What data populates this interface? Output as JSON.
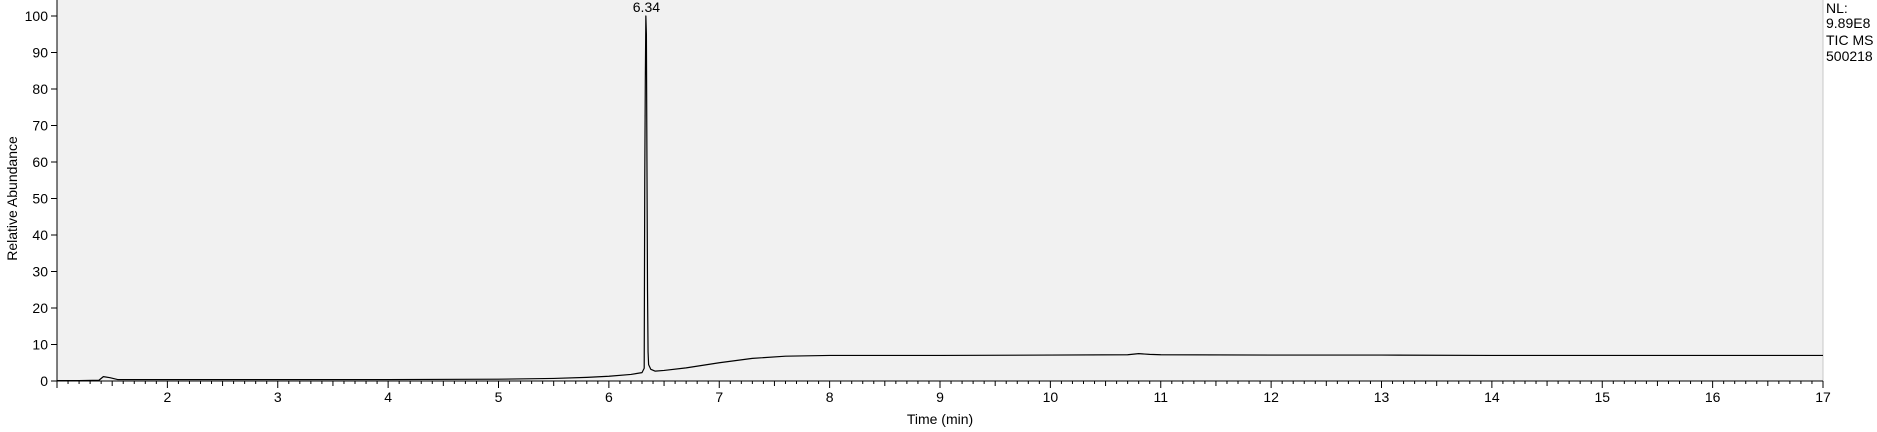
{
  "info": {
    "nl_label": "NL:",
    "nl_value": "9.89E8",
    "trace": "TIC  MS",
    "sample": "500218"
  },
  "colors": {
    "plot_background": "#f1f1f1",
    "trace": "#000000",
    "axis": "#000000"
  },
  "chart_data": {
    "type": "line",
    "title": "",
    "xlabel": "Time (min)",
    "ylabel": "Relative Abundance",
    "xlim": [
      1.0,
      17.0
    ],
    "ylim": [
      0,
      100
    ],
    "x_ticks": [
      2,
      3,
      4,
      5,
      6,
      7,
      8,
      9,
      10,
      11,
      12,
      13,
      14,
      15,
      16,
      17
    ],
    "y_ticks": [
      0,
      10,
      20,
      30,
      40,
      50,
      60,
      70,
      80,
      90,
      100
    ],
    "grid": false,
    "peak_labels": [
      {
        "x": 6.34,
        "y": 100,
        "text": "6.34"
      }
    ],
    "series": [
      {
        "x": [
          1.0,
          1.2,
          1.38,
          1.42,
          1.48,
          1.55,
          2.0,
          3.0,
          4.0,
          5.0,
          5.5,
          5.8,
          6.0,
          6.2,
          6.3,
          6.32,
          6.325,
          6.33,
          6.335,
          6.34,
          6.345,
          6.35,
          6.355,
          6.36,
          6.38,
          6.42,
          6.5,
          6.7,
          7.0,
          7.3,
          7.6,
          8.0,
          9.0,
          10.0,
          10.7,
          10.8,
          10.9,
          11.0,
          12.0,
          13.0,
          14.0,
          15.0,
          16.0,
          17.0
        ],
        "y": [
          0.1,
          0.1,
          0.2,
          1.2,
          0.9,
          0.4,
          0.4,
          0.4,
          0.4,
          0.5,
          0.7,
          1.0,
          1.3,
          1.8,
          2.3,
          3.5,
          55,
          82,
          100,
          95,
          60,
          25,
          8,
          4.5,
          3.2,
          2.7,
          2.9,
          3.6,
          5.0,
          6.2,
          6.8,
          7.0,
          7.0,
          7.1,
          7.2,
          7.5,
          7.3,
          7.2,
          7.1,
          7.1,
          7.0,
          7.0,
          7.0,
          7.0
        ]
      }
    ]
  }
}
